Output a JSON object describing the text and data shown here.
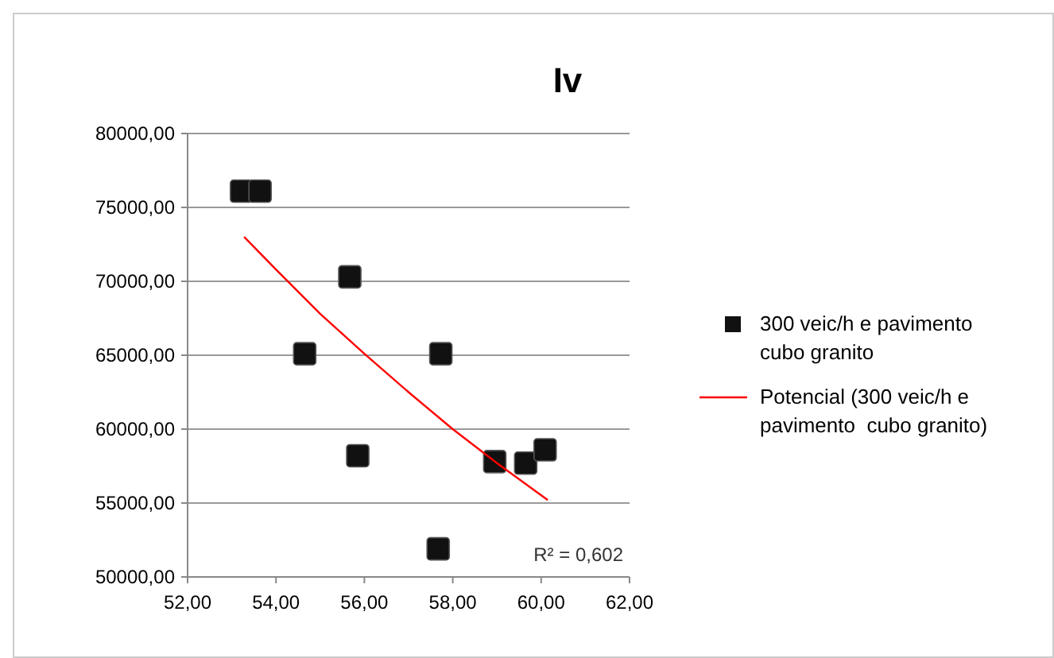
{
  "chart_data": {
    "type": "scatter",
    "title": "Iv",
    "xlim": [
      52,
      62
    ],
    "xticks": [
      {
        "value": 52,
        "label": "52,00"
      },
      {
        "value": 54,
        "label": "54,00"
      },
      {
        "value": 56,
        "label": "56,00"
      },
      {
        "value": 58,
        "label": "58,00"
      },
      {
        "value": 60,
        "label": "60,00"
      },
      {
        "value": 62,
        "label": "62,00"
      }
    ],
    "ylim": [
      50000,
      80000
    ],
    "yticks": [
      {
        "value": 50000,
        "label": "50000,00"
      },
      {
        "value": 55000,
        "label": "55000,00"
      },
      {
        "value": 60000,
        "label": "60000,00"
      },
      {
        "value": 65000,
        "label": "65000,00"
      },
      {
        "value": 70000,
        "label": "70000,00"
      },
      {
        "value": 75000,
        "label": "75000,00"
      },
      {
        "value": 80000,
        "label": "80000,00"
      }
    ],
    "grid": "y",
    "legend": "right",
    "series": [
      {
        "name": "300 veic/h e pavimento cubo granito",
        "marker": "square",
        "color": "#111111",
        "x": [
          53.22,
          53.64,
          54.65,
          55.67,
          55.85,
          57.73,
          57.67,
          58.95,
          59.65,
          60.09
        ],
        "values": [
          76100,
          76100,
          65100,
          70300,
          58200,
          65100,
          51900,
          57800,
          57700,
          58600
        ]
      },
      {
        "name": "Potencial (300 veic/h e pavimento  cubo granito)",
        "type": "line",
        "color": "#ff0000",
        "marker": "none",
        "line_style": "solid",
        "x": [
          53.28,
          54,
          55,
          56,
          57,
          58,
          59,
          60.15
        ],
        "values": [
          73000,
          70800,
          67800,
          65100,
          62500,
          60000,
          57700,
          55200
        ]
      }
    ],
    "annotations": [
      "R² = 0,602"
    ]
  }
}
